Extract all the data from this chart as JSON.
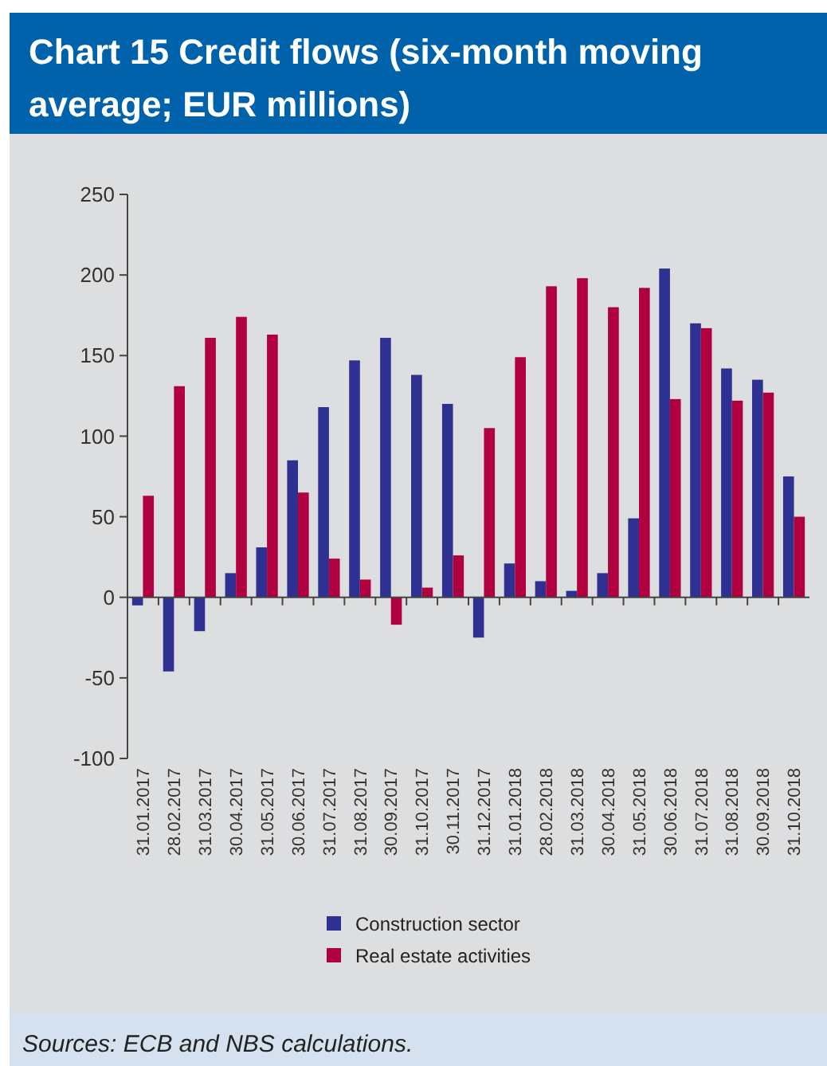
{
  "chart_data": {
    "type": "bar",
    "title": "Chart 15 Credit flows (six-month moving average; EUR millions)",
    "categories": [
      "31.01.2017",
      "28.02.2017",
      "31.03.2017",
      "30.04.2017",
      "31.05.2017",
      "30.06.2017",
      "31.07.2017",
      "31.08.2017",
      "30.09.2017",
      "31.10.2017",
      "30.11.2017",
      "31.12.2017",
      "31.01.2018",
      "28.02.2018",
      "31.03.2018",
      "30.04.2018",
      "31.05.2018",
      "30.06.2018",
      "31.07.2018",
      "31.08.2018",
      "30.09.2018",
      "31.10.2018"
    ],
    "series": [
      {
        "name": "Construction sector",
        "color": "#2e3192",
        "values": [
          -5,
          -46,
          -21,
          15,
          31,
          85,
          118,
          147,
          161,
          138,
          120,
          -25,
          21,
          10,
          4,
          15,
          49,
          204,
          170,
          142,
          135,
          75
        ]
      },
      {
        "name": "Real estate activities",
        "color": "#b0003f",
        "values": [
          63,
          131,
          161,
          174,
          163,
          65,
          24,
          11,
          -17,
          6,
          26,
          105,
          149,
          193,
          198,
          180,
          192,
          123,
          167,
          122,
          127,
          50
        ]
      }
    ],
    "ylim": [
      -100,
      250
    ],
    "yticks": [
      -100,
      -50,
      0,
      50,
      100,
      150,
      200,
      250
    ],
    "legend": "bottom",
    "annotations": [
      "Sources: ECB and NBS calculations."
    ]
  }
}
